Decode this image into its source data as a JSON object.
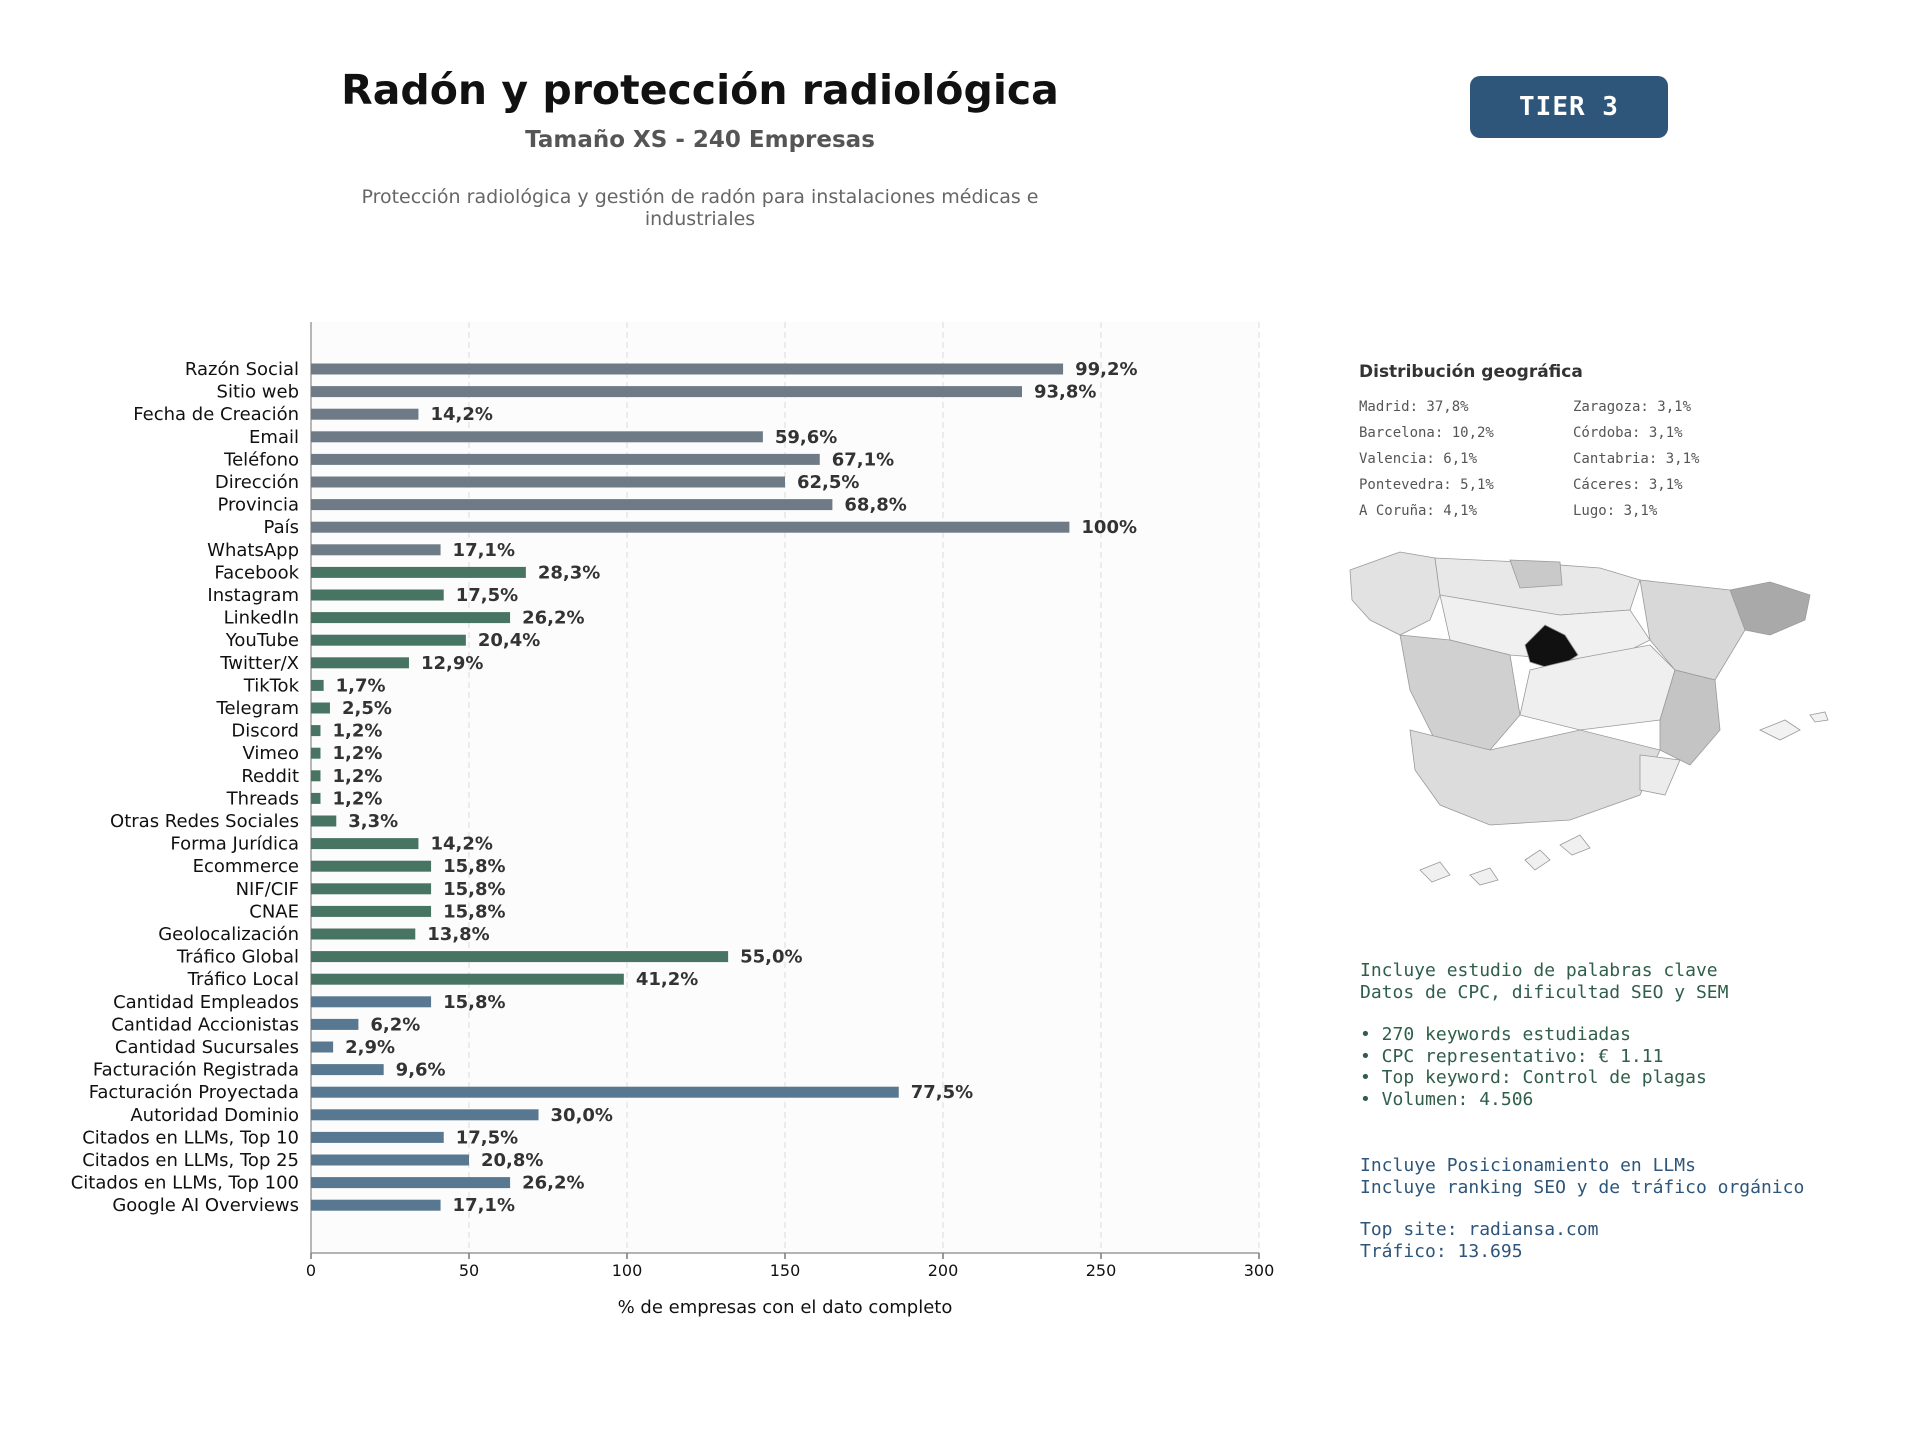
{
  "header": {
    "title": "Radón y protección radiológica",
    "subtitle": "Tamaño XS - 240 Empresas",
    "description": "Protección radiológica y gestión de radón para instalaciones médicas e industriales",
    "tier": "TIER 3"
  },
  "chart_data": {
    "type": "bar",
    "orientation": "horizontal",
    "xlabel": "% de empresas con el dato completo",
    "xlim": [
      0,
      300
    ],
    "xticks": [
      0,
      50,
      100,
      150,
      200,
      250,
      300
    ],
    "grid": "vertical dashed",
    "categories": [
      "Razón Social",
      "Sitio web",
      "Fecha de Creación",
      "Email",
      "Teléfono",
      "Dirección",
      "Provincia",
      "País",
      "WhatsApp",
      "Facebook",
      "Instagram",
      "LinkedIn",
      "YouTube",
      "Twitter/X",
      "TikTok",
      "Telegram",
      "Discord",
      "Vimeo",
      "Reddit",
      "Threads",
      "Otras Redes Sociales",
      "Forma Jurídica",
      "Ecommerce",
      "NIF/CIF",
      "CNAE",
      "Geolocalización",
      "Tráfico Global",
      "Tráfico Local",
      "Cantidad Empleados",
      "Cantidad Accionistas",
      "Cantidad Sucursales",
      "Facturación Registrada",
      "Facturación Proyectada",
      "Autoridad Dominio",
      "Citados en LLMs, Top 10",
      "Citados en LLMs, Top 25",
      "Citados en LLMs, Top 100",
      "Google AI Overviews"
    ],
    "values": [
      238,
      225,
      34,
      143,
      161,
      150,
      165,
      240,
      41,
      68,
      42,
      63,
      49,
      31,
      4,
      6,
      3,
      3,
      3,
      3,
      8,
      34,
      38,
      38,
      38,
      33,
      132,
      99,
      38,
      15,
      7,
      23,
      186,
      72,
      42,
      50,
      63,
      41
    ],
    "labels": [
      "99,2%",
      "93,8%",
      "14,2%",
      "59,6%",
      "67,1%",
      "62,5%",
      "68,8%",
      "100%",
      "17,1%",
      "28,3%",
      "17,5%",
      "26,2%",
      "20,4%",
      "12,9%",
      "1,7%",
      "2,5%",
      "1,2%",
      "1,2%",
      "1,2%",
      "1,2%",
      "3,3%",
      "14,2%",
      "15,8%",
      "15,8%",
      "15,8%",
      "13,8%",
      "55,0%",
      "41,2%",
      "15,8%",
      "6,2%",
      "2,9%",
      "9,6%",
      "77,5%",
      "30,0%",
      "17,5%",
      "20,8%",
      "26,2%",
      "17,1%"
    ],
    "groups": [
      {
        "color": "#6e7b87",
        "count": 9
      },
      {
        "color": "#487563",
        "count": 19
      },
      {
        "color": "#587891",
        "count": 10
      }
    ]
  },
  "geo": {
    "title": "Distribución geográfica",
    "items": [
      "Madrid: 37,8%",
      "Zaragoza: 3,1%",
      "Barcelona: 10,2%",
      "Córdoba: 3,1%",
      "Valencia: 6,1%",
      "Cantabria: 3,1%",
      "Pontevedra: 5,1%",
      "Cáceres: 3,1%",
      "A Coruña: 4,1%",
      "Lugo: 3,1%"
    ]
  },
  "keywords": {
    "line1": "Incluye estudio de palabras clave",
    "line2": "Datos de CPC, dificultad SEO y SEM",
    "bullets": [
      "• 270 keywords estudiadas",
      "• CPC representativo: € 1.11",
      "• Top keyword: Control de plagas",
      "• Volumen: 4.506"
    ]
  },
  "llm": {
    "line1": "Incluye Posicionamiento en LLMs",
    "line2": "Incluye ranking SEO y de tráfico orgánico",
    "top_site": "Top site: radiansa.com",
    "traffic": "Tráfico: 13.695"
  }
}
